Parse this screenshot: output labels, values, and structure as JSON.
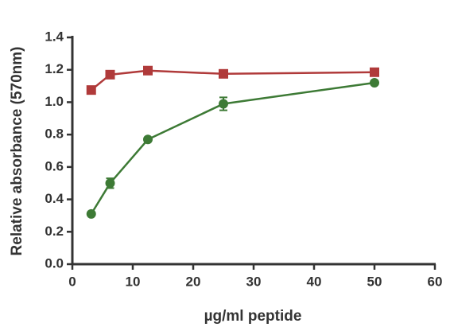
{
  "chart_data": {
    "type": "line",
    "x_label": "µg/ml peptide",
    "y_label": "Relative absorbance (570nm)",
    "x": [
      3.125,
      6.25,
      12.5,
      25,
      50
    ],
    "series": [
      {
        "color": "#b03a3a",
        "marker": "square",
        "values": [
          1.075,
          1.17,
          1.195,
          1.175,
          1.185
        ]
      },
      {
        "color": "#3d7a35",
        "marker": "circle",
        "values": [
          0.31,
          0.5,
          0.77,
          0.99,
          1.12
        ],
        "errors": [
          0.01,
          0.03,
          0.01,
          0.04,
          0.01
        ]
      }
    ],
    "xlim": [
      0,
      60
    ],
    "xticks": [
      0,
      10,
      20,
      30,
      40,
      50,
      60
    ],
    "ylim": [
      0,
      1.4
    ],
    "yticks": [
      {
        "value": 0,
        "label": "0.0"
      },
      0.2,
      0.4,
      0.6,
      0.8,
      {
        "value": 1,
        "label": "1.0"
      },
      1.2,
      1.4
    ]
  }
}
